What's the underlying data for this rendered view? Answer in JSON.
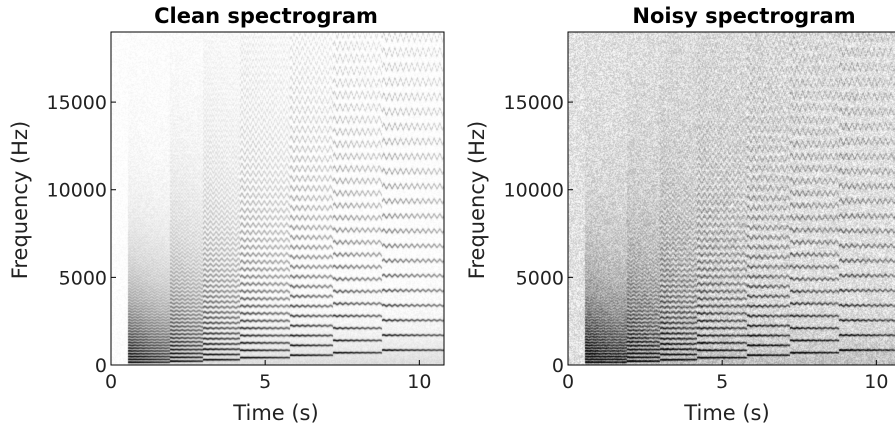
{
  "chart_data": [
    {
      "type": "heatmap",
      "title": "Clean spectrogram",
      "xlabel": "Time (s)",
      "ylabel": "Frequency (Hz)",
      "xlim": [
        0,
        10.8
      ],
      "ylim": [
        0,
        19000
      ],
      "xticks": [
        0,
        5,
        10
      ],
      "yticks": [
        0,
        5000,
        10000,
        15000
      ],
      "xtick_labels": [
        "0",
        "5",
        "10"
      ],
      "ytick_labels": [
        "0",
        "5000",
        "10000",
        "15000"
      ],
      "colormap": "gray_r",
      "noise_level": 0.0,
      "signal_start_s": 0.55,
      "notes": [
        {
          "t0": 0.55,
          "t1": 1.9,
          "f0": 160
        },
        {
          "t0": 1.9,
          "t1": 3.0,
          "f0": 220
        },
        {
          "t0": 3.0,
          "t1": 4.2,
          "f0": 300
        },
        {
          "t0": 4.2,
          "t1": 5.8,
          "f0": 420
        },
        {
          "t0": 5.8,
          "t1": 7.2,
          "f0": 560
        },
        {
          "t0": 7.2,
          "t1": 8.8,
          "f0": 700
        },
        {
          "t0": 8.8,
          "t1": 10.8,
          "f0": 850
        }
      ]
    },
    {
      "type": "heatmap",
      "title": "Noisy spectrogram",
      "xlabel": "Time (s)",
      "ylabel": "Frequency (Hz)",
      "xlim": [
        0,
        10.8
      ],
      "ylim": [
        0,
        19000
      ],
      "xticks": [
        0,
        5,
        10
      ],
      "yticks": [
        0,
        5000,
        10000,
        15000
      ],
      "xtick_labels": [
        "0",
        "5",
        "10"
      ],
      "ytick_labels": [
        "0",
        "5000",
        "10000",
        "15000"
      ],
      "colormap": "gray_r",
      "noise_level": 0.2,
      "signal_start_s": 0.55,
      "notes": [
        {
          "t0": 0.55,
          "t1": 1.9,
          "f0": 160
        },
        {
          "t0": 1.9,
          "t1": 3.0,
          "f0": 220
        },
        {
          "t0": 3.0,
          "t1": 4.2,
          "f0": 300
        },
        {
          "t0": 4.2,
          "t1": 5.8,
          "f0": 420
        },
        {
          "t0": 5.8,
          "t1": 7.2,
          "f0": 560
        },
        {
          "t0": 7.2,
          "t1": 8.8,
          "f0": 700
        },
        {
          "t0": 8.8,
          "t1": 10.8,
          "f0": 850
        }
      ]
    }
  ]
}
